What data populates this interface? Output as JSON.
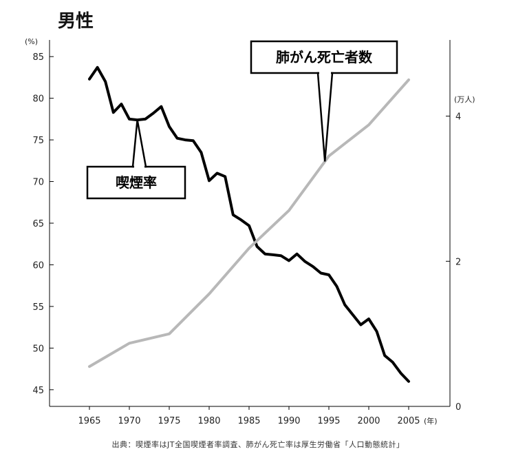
{
  "title": "男性",
  "source": "出典：喫煙率はJT全国喫煙者率調査、肺がん死亡率は厚生労働省「人口動態統計」",
  "chart_data": {
    "type": "line",
    "title": "男性",
    "x_ticks": [
      "1965",
      "1970",
      "1975",
      "1980",
      "1985",
      "1990",
      "1995",
      "2000",
      "2005"
    ],
    "x_unit": "(年)",
    "y_left": {
      "unit": "(%)",
      "range": [
        43,
        87
      ],
      "ticks": [
        45,
        50,
        55,
        60,
        65,
        70,
        75,
        80,
        85
      ]
    },
    "y_right": {
      "unit": "(万人)",
      "range": [
        0,
        5.05
      ],
      "ticks": [
        0,
        2,
        4
      ]
    },
    "series": [
      {
        "name": "喫煙率",
        "axis": "left",
        "color": "#000000",
        "x": [
          1965,
          1966,
          1967,
          1968,
          1969,
          1970,
          1971,
          1972,
          1973,
          1974,
          1975,
          1976,
          1977,
          1978,
          1979,
          1980,
          1981,
          1982,
          1983,
          1984,
          1985,
          1986,
          1987,
          1988,
          1989,
          1990,
          1991,
          1992,
          1993,
          1994,
          1995,
          1996,
          1997,
          1998,
          1999,
          2000,
          2001,
          2002,
          2003,
          2004,
          2005
        ],
        "values": [
          82.3,
          83.7,
          82.0,
          78.3,
          79.3,
          77.5,
          77.4,
          77.5,
          78.2,
          79.0,
          76.6,
          75.2,
          75.0,
          74.9,
          73.5,
          70.1,
          71.0,
          70.6,
          66.0,
          65.4,
          64.7,
          62.2,
          61.3,
          61.2,
          61.1,
          60.5,
          61.3,
          60.4,
          59.8,
          59.0,
          58.8,
          57.4,
          55.2,
          54.0,
          52.8,
          53.5,
          52.0,
          49.1,
          48.3,
          47.0,
          46.0
        ]
      },
      {
        "name": "肺がん死亡者数",
        "axis": "right",
        "color": "#b8b8b8",
        "x": [
          1965,
          1970,
          1975,
          1980,
          1985,
          1990,
          1995,
          2000,
          2005
        ],
        "values": [
          0.55,
          0.87,
          1.0,
          1.55,
          2.18,
          2.7,
          3.45,
          3.88,
          4.5
        ]
      }
    ],
    "annotations": [
      {
        "text": "喫煙率",
        "series": "喫煙率",
        "x": 1971
      },
      {
        "text": "肺がん死亡者数",
        "series": "肺がん死亡者数",
        "x": 1994.5
      }
    ],
    "grid": false,
    "legend": "none"
  }
}
